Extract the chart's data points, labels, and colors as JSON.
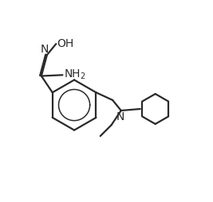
{
  "background_color": "#ffffff",
  "line_color": "#2a2a2a",
  "line_width": 1.6,
  "figsize": [
    2.67,
    2.54
  ],
  "dpi": 100,
  "labels": {
    "OH": "OH",
    "N_imino": "N",
    "NH2": "NH₂",
    "N_amine": "N"
  },
  "font_size": 10.0
}
